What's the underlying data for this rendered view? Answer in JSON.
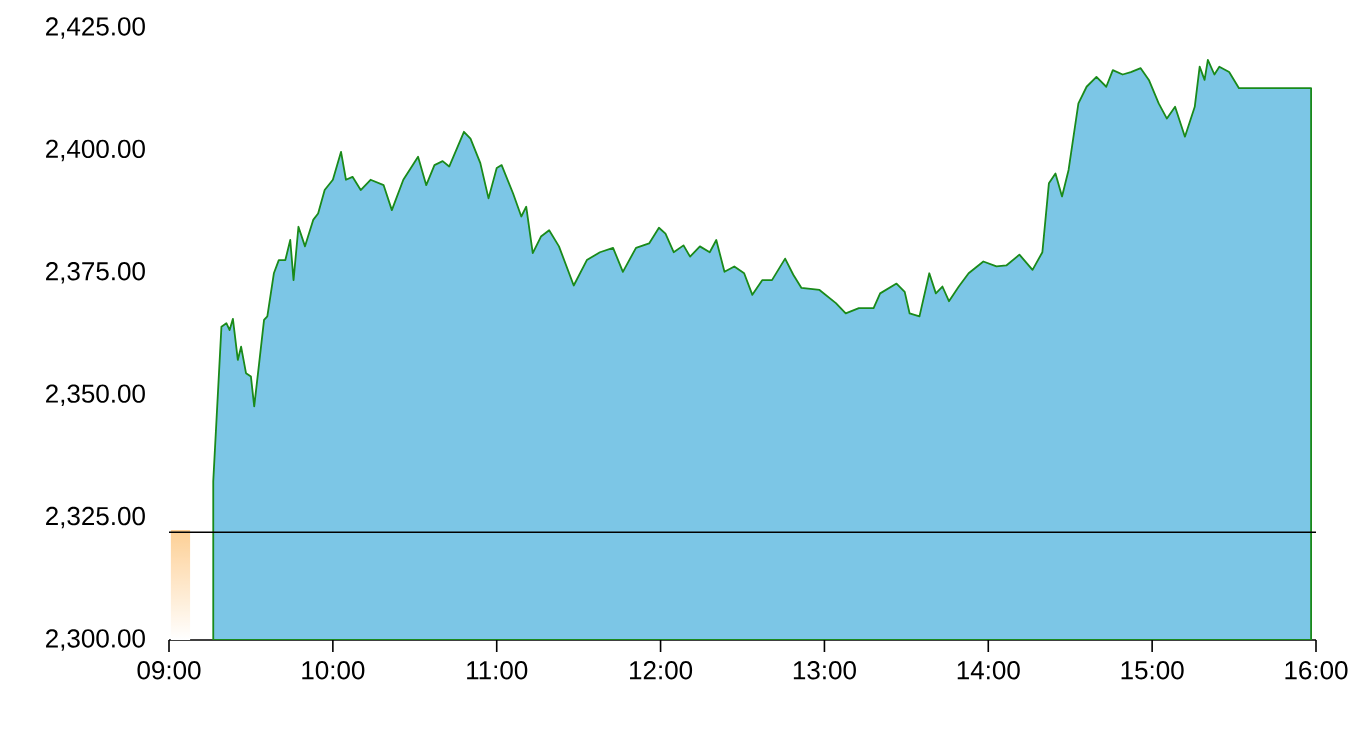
{
  "chart_data": {
    "type": "area",
    "xlim": [
      9,
      16
    ],
    "ylim": [
      2300,
      2425
    ],
    "xticks": [
      {
        "value": 9,
        "label": "09:00"
      },
      {
        "value": 10,
        "label": "10:00"
      },
      {
        "value": 11,
        "label": "11:00"
      },
      {
        "value": 12,
        "label": "12:00"
      },
      {
        "value": 13,
        "label": "13:00"
      },
      {
        "value": 14,
        "label": "14:00"
      },
      {
        "value": 15,
        "label": "15:00"
      },
      {
        "value": 16,
        "label": "16:00"
      }
    ],
    "yticks": [
      {
        "value": 2300,
        "label": "2,300.00"
      },
      {
        "value": 2325,
        "label": "2,325.00"
      },
      {
        "value": 2350,
        "label": "2,350.00"
      },
      {
        "value": 2375,
        "label": "2,375.00"
      },
      {
        "value": 2400,
        "label": "2,400.00"
      },
      {
        "value": 2425,
        "label": "2,425.00"
      }
    ],
    "ref_lines": [
      {
        "axis": "y",
        "value": 2322,
        "color": "#000000"
      }
    ],
    "series": [
      {
        "type": "bar",
        "color": "#fdcf94",
        "x": [
          9.07
        ],
        "values": [
          2322.5
        ]
      },
      {
        "color": "#7cc6e6",
        "x": [
          9.27,
          9.32,
          9.35,
          9.37,
          9.39,
          9.42,
          9.44,
          9.47,
          9.5,
          9.52,
          9.55,
          9.58,
          9.6,
          9.64,
          9.67,
          9.71,
          9.74,
          9.76,
          9.79,
          9.83,
          9.88,
          9.91,
          9.95,
          10.0,
          10.05,
          10.08,
          10.12,
          10.17,
          10.23,
          10.31,
          10.36,
          10.43,
          10.52,
          10.57,
          10.62,
          10.67,
          10.71,
          10.8,
          10.84,
          10.9,
          10.95,
          11.0,
          11.03,
          11.1,
          11.15,
          11.18,
          11.22,
          11.27,
          11.32,
          11.38,
          11.47,
          11.55,
          11.63,
          11.71,
          11.77,
          11.85,
          11.93,
          11.99,
          12.03,
          12.08,
          12.14,
          12.18,
          12.24,
          12.3,
          12.34,
          12.39,
          12.45,
          12.51,
          12.56,
          12.62,
          12.68,
          12.76,
          12.81,
          12.86,
          12.97,
          13.07,
          13.13,
          13.21,
          13.3,
          13.34,
          13.44,
          13.49,
          13.52,
          13.58,
          13.64,
          13.68,
          13.72,
          13.76,
          13.82,
          13.88,
          13.97,
          14.05,
          14.11,
          14.19,
          14.27,
          14.33,
          14.37,
          14.41,
          14.45,
          14.49,
          14.55,
          14.6,
          14.66,
          14.72,
          14.76,
          14.82,
          14.87,
          14.93,
          14.98,
          15.04,
          15.09,
          15.14,
          15.2,
          15.26,
          15.29,
          15.32,
          15.34,
          15.38,
          15.41,
          15.47,
          15.53,
          15.97
        ],
        "values": [
          2332.4,
          2364.0,
          2364.7,
          2363.3,
          2365.6,
          2357.2,
          2359.9,
          2354.5,
          2353.8,
          2347.7,
          2356.5,
          2365.4,
          2366.1,
          2374.9,
          2377.6,
          2377.6,
          2381.7,
          2373.5,
          2384.4,
          2380.4,
          2385.8,
          2387.1,
          2391.9,
          2394.0,
          2399.7,
          2394.0,
          2394.6,
          2391.9,
          2394.0,
          2392.9,
          2387.8,
          2394.0,
          2398.7,
          2392.9,
          2397.0,
          2397.8,
          2396.7,
          2403.8,
          2402.4,
          2397.4,
          2390.2,
          2396.4,
          2397.0,
          2391.2,
          2386.5,
          2388.5,
          2379.0,
          2382.4,
          2383.7,
          2380.4,
          2372.4,
          2377.6,
          2379.2,
          2380.1,
          2375.2,
          2380.1,
          2381.0,
          2384.2,
          2383.0,
          2379.2,
          2380.6,
          2378.3,
          2380.4,
          2379.2,
          2381.7,
          2375.2,
          2376.3,
          2374.9,
          2370.5,
          2373.5,
          2373.5,
          2377.9,
          2374.6,
          2371.9,
          2371.5,
          2368.8,
          2366.7,
          2367.8,
          2367.8,
          2370.8,
          2372.8,
          2371.1,
          2366.7,
          2366.1,
          2374.9,
          2370.8,
          2372.2,
          2369.2,
          2372.2,
          2374.9,
          2377.3,
          2376.3,
          2376.5,
          2378.7,
          2375.6,
          2379.2,
          2393.3,
          2395.3,
          2390.6,
          2396.0,
          2409.6,
          2413.0,
          2415.0,
          2413.0,
          2416.4,
          2415.5,
          2416.0,
          2416.8,
          2414.4,
          2409.6,
          2406.5,
          2408.9,
          2402.8,
          2408.9,
          2417.1,
          2414.4,
          2418.5,
          2415.5,
          2417.1,
          2416.0,
          2412.7,
          2412.7
        ]
      }
    ]
  }
}
